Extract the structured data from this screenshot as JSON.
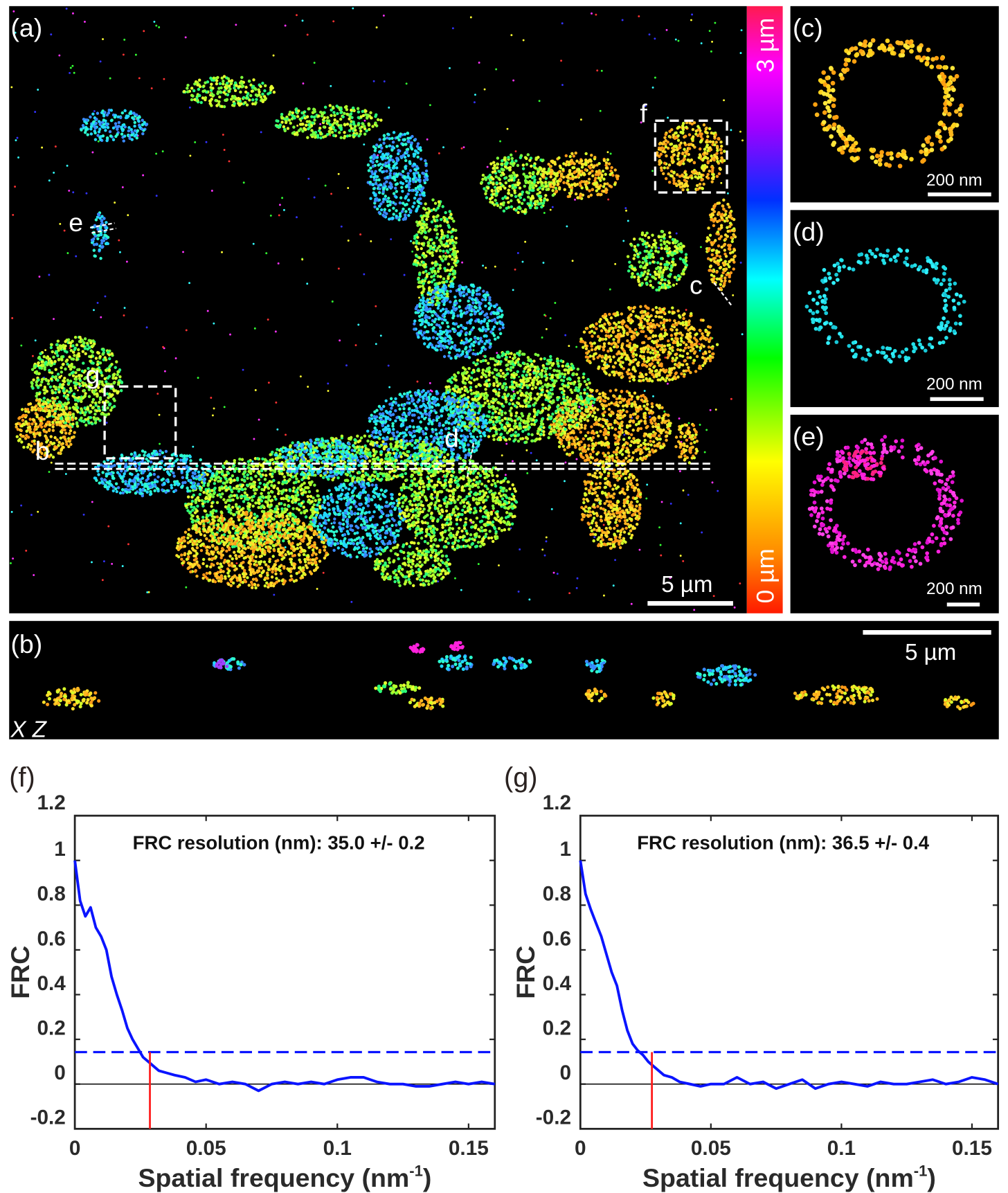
{
  "panels": {
    "a": {
      "label": "(a)",
      "scalebar": "5 µm",
      "markers": {
        "b": "b",
        "c": "c",
        "d": "d",
        "e": "e",
        "f": "f",
        "g": "g"
      },
      "colorbar": {
        "top": "3 µm",
        "bottom": "0 µm"
      }
    },
    "b": {
      "label": "(b)",
      "scalebar": "5 µm",
      "axes": "X Z"
    },
    "c": {
      "label": "(c)",
      "scalebar": "200 nm",
      "color": "#ffc400"
    },
    "d": {
      "label": "(d)",
      "scalebar": "200 nm",
      "color": "#22e0e8"
    },
    "e": {
      "label": "(e)",
      "scalebar": "200 nm",
      "color": "#ff22dd"
    },
    "f": {
      "label": "(f)"
    },
    "g": {
      "label": "(g)"
    }
  },
  "colors": {
    "curve": "#0a14ff",
    "threshold": "#0a14ff",
    "resolution_line": "#ff1a1a"
  },
  "chart_data": [
    {
      "type": "line",
      "panel": "f",
      "annotation": "FRC resolution (nm): 35.0 +/- 0.2",
      "ylabel": "FRC",
      "xlabel": {
        "main": "Spatial frequency (nm",
        "sup": "-1",
        "end": ")"
      },
      "xlim": [
        0,
        0.16
      ],
      "ylim": [
        -0.2,
        1.2
      ],
      "xticks": [
        0,
        0.05,
        0.1,
        0.15
      ],
      "xtick_labels": [
        "0",
        "0.05",
        "0.1",
        "0.15"
      ],
      "yticks": [
        -0.2,
        0,
        0.2,
        0.4,
        0.6,
        0.8,
        1,
        1.2
      ],
      "ytick_labels": [
        "-0.2",
        "0",
        "0.2",
        "0.4",
        "0.6",
        "0.8",
        "1",
        "1.2"
      ],
      "threshold": 0.143,
      "resolution_frequency": 0.0286,
      "x": [
        0,
        0.002,
        0.004,
        0.006,
        0.008,
        0.01,
        0.012,
        0.014,
        0.016,
        0.018,
        0.02,
        0.022,
        0.024,
        0.026,
        0.028,
        0.03,
        0.032,
        0.035,
        0.038,
        0.042,
        0.046,
        0.05,
        0.055,
        0.06,
        0.065,
        0.07,
        0.075,
        0.08,
        0.085,
        0.09,
        0.095,
        0.1,
        0.105,
        0.11,
        0.115,
        0.12,
        0.125,
        0.13,
        0.135,
        0.14,
        0.145,
        0.15,
        0.155,
        0.16
      ],
      "y": [
        1.0,
        0.82,
        0.75,
        0.79,
        0.7,
        0.66,
        0.6,
        0.48,
        0.4,
        0.33,
        0.25,
        0.2,
        0.16,
        0.12,
        0.1,
        0.08,
        0.06,
        0.05,
        0.04,
        0.03,
        0.01,
        0.02,
        0.0,
        0.01,
        0.0,
        -0.03,
        0.0,
        0.01,
        0.0,
        0.01,
        0.0,
        0.02,
        0.03,
        0.03,
        0.01,
        0.0,
        0.0,
        -0.01,
        -0.01,
        0.0,
        0.01,
        0.0,
        0.01,
        0.0
      ]
    },
    {
      "type": "line",
      "panel": "g",
      "annotation": "FRC resolution (nm): 36.5 +/- 0.4",
      "ylabel": "FRC",
      "xlabel": {
        "main": "Spatial frequency (nm",
        "sup": "-1",
        "end": ")"
      },
      "xlim": [
        0,
        0.16
      ],
      "ylim": [
        -0.2,
        1.2
      ],
      "xticks": [
        0,
        0.05,
        0.1,
        0.15
      ],
      "xtick_labels": [
        "0",
        "0.05",
        "0.1",
        "0.15"
      ],
      "yticks": [
        -0.2,
        0,
        0.2,
        0.4,
        0.6,
        0.8,
        1,
        1.2
      ],
      "ytick_labels": [
        "-0.2",
        "0",
        "0.2",
        "0.4",
        "0.6",
        "0.8",
        "1",
        "1.2"
      ],
      "threshold": 0.143,
      "resolution_frequency": 0.0274,
      "x": [
        0,
        0.002,
        0.004,
        0.006,
        0.008,
        0.01,
        0.012,
        0.014,
        0.016,
        0.018,
        0.02,
        0.022,
        0.024,
        0.026,
        0.028,
        0.03,
        0.032,
        0.035,
        0.038,
        0.042,
        0.046,
        0.05,
        0.055,
        0.06,
        0.065,
        0.07,
        0.075,
        0.08,
        0.085,
        0.09,
        0.095,
        0.1,
        0.105,
        0.11,
        0.115,
        0.12,
        0.125,
        0.13,
        0.135,
        0.14,
        0.145,
        0.15,
        0.155,
        0.16
      ],
      "y": [
        1.0,
        0.85,
        0.78,
        0.72,
        0.66,
        0.58,
        0.5,
        0.44,
        0.33,
        0.24,
        0.18,
        0.15,
        0.13,
        0.1,
        0.08,
        0.06,
        0.04,
        0.03,
        0.01,
        0.0,
        -0.01,
        0.0,
        0.0,
        0.03,
        0.0,
        0.01,
        -0.02,
        0.0,
        0.02,
        -0.02,
        0.0,
        0.01,
        0.0,
        -0.01,
        0.01,
        0.0,
        0.0,
        0.01,
        0.02,
        0.0,
        0.01,
        0.03,
        0.02,
        0.0
      ]
    }
  ]
}
